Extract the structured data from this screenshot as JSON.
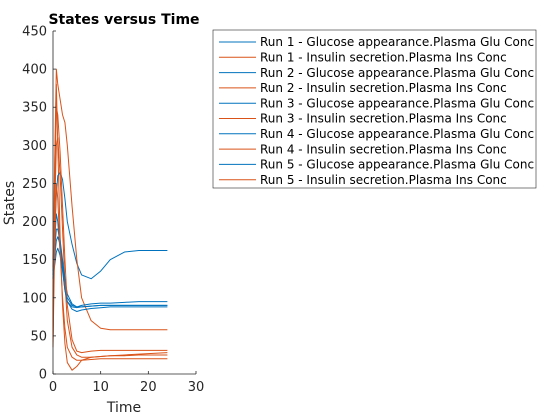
{
  "chart_data": {
    "type": "line",
    "title": "States versus Time",
    "xlabel": "Time",
    "ylabel": "States",
    "xlim": [
      0,
      30
    ],
    "ylim": [
      0,
      450
    ],
    "xticks": [
      "0",
      "10",
      "20",
      "30"
    ],
    "yticks": [
      "0",
      "50",
      "100",
      "150",
      "200",
      "250",
      "300",
      "350",
      "400",
      "450"
    ],
    "grid": false,
    "legend_position": "outside-right",
    "colors": {
      "glucose": "#0072BD",
      "insulin": "#D95319"
    },
    "series": [
      {
        "name": "Run 1 - Glucose appearance.Plasma Glu Conc",
        "group": "glucose",
        "x": [
          0,
          0.3,
          0.7,
          1,
          1.5,
          2,
          2.5,
          3,
          4,
          5,
          6,
          8,
          10,
          12,
          15,
          18,
          21,
          24
        ],
        "y": [
          140,
          170,
          210,
          200,
          160,
          140,
          110,
          95,
          88,
          87,
          88,
          89,
          90,
          90,
          90,
          90,
          90,
          90
        ]
      },
      {
        "name": "Run 1 - Insulin secretion.Plasma Ins Conc",
        "group": "insulin",
        "x": [
          0,
          0.3,
          0.7,
          1,
          1.5,
          2,
          2.5,
          3,
          4,
          5,
          6,
          8,
          10,
          12,
          15,
          18,
          21,
          24
        ],
        "y": [
          50,
          250,
          380,
          300,
          180,
          90,
          40,
          15,
          5,
          10,
          18,
          22,
          23,
          24,
          24,
          25,
          25,
          25
        ]
      },
      {
        "name": "Run 2 - Glucose appearance.Plasma Glu Conc",
        "group": "glucose",
        "x": [
          0,
          0.3,
          0.7,
          1,
          1.5,
          2,
          2.5,
          3,
          4,
          5,
          6,
          8,
          10,
          12,
          15,
          18,
          21,
          24
        ],
        "y": [
          150,
          180,
          235,
          260,
          265,
          255,
          230,
          200,
          170,
          145,
          130,
          125,
          135,
          150,
          160,
          162,
          162,
          162
        ]
      },
      {
        "name": "Run 2 - Insulin secretion.Plasma Ins Conc",
        "group": "insulin",
        "x": [
          0,
          0.3,
          0.7,
          1,
          1.5,
          2,
          2.5,
          3,
          4,
          5,
          6,
          8,
          10,
          12,
          15,
          18,
          21,
          24
        ],
        "y": [
          60,
          260,
          400,
          380,
          360,
          340,
          330,
          300,
          220,
          150,
          100,
          70,
          60,
          58,
          58,
          58,
          58,
          58
        ]
      },
      {
        "name": "Run 3 - Glucose appearance.Plasma Glu Conc",
        "group": "glucose",
        "x": [
          0,
          0.3,
          0.7,
          1,
          1.5,
          2,
          2.5,
          3,
          4,
          5,
          6,
          8,
          10,
          12,
          15,
          18,
          21,
          24
        ],
        "y": [
          130,
          150,
          175,
          180,
          170,
          145,
          120,
          100,
          90,
          88,
          90,
          92,
          93,
          93,
          94,
          95,
          95,
          95
        ]
      },
      {
        "name": "Run 3 - Insulin secretion.Plasma Ins Conc",
        "group": "insulin",
        "x": [
          0,
          0.3,
          0.7,
          1,
          1.5,
          2,
          2.5,
          3,
          4,
          5,
          6,
          8,
          10,
          12,
          15,
          18,
          21,
          24
        ],
        "y": [
          40,
          200,
          300,
          310,
          260,
          190,
          120,
          70,
          35,
          25,
          22,
          22,
          23,
          24,
          25,
          26,
          27,
          28
        ]
      },
      {
        "name": "Run 4 - Glucose appearance.Plasma Glu Conc",
        "group": "glucose",
        "x": [
          0,
          0.3,
          0.7,
          1,
          1.5,
          2,
          2.5,
          3,
          4,
          5,
          6,
          8,
          10,
          12,
          15,
          18,
          21,
          24
        ],
        "y": [
          135,
          160,
          190,
          190,
          175,
          150,
          125,
          105,
          92,
          88,
          88,
          89,
          90,
          90,
          90,
          90,
          90,
          90
        ]
      },
      {
        "name": "Run 4 - Insulin secretion.Plasma Ins Conc",
        "group": "insulin",
        "x": [
          0,
          0.3,
          0.7,
          1,
          1.5,
          2,
          2.5,
          3,
          4,
          5,
          6,
          8,
          10,
          12,
          15,
          18,
          21,
          24
        ],
        "y": [
          45,
          220,
          350,
          340,
          290,
          220,
          150,
          90,
          45,
          30,
          28,
          30,
          31,
          31,
          31,
          31,
          31,
          31
        ]
      },
      {
        "name": "Run 5 - Glucose appearance.Plasma Glu Conc",
        "group": "glucose",
        "x": [
          0,
          0.3,
          0.7,
          1,
          1.5,
          2,
          2.5,
          3,
          4,
          5,
          6,
          8,
          10,
          12,
          15,
          18,
          21,
          24
        ],
        "y": [
          125,
          140,
          160,
          165,
          155,
          135,
          110,
          95,
          85,
          82,
          84,
          86,
          87,
          88,
          88,
          88,
          88,
          88
        ]
      },
      {
        "name": "Run 5 - Insulin secretion.Plasma Ins Conc",
        "group": "insulin",
        "x": [
          0,
          0.3,
          0.7,
          1,
          1.5,
          2,
          2.5,
          3,
          4,
          5,
          6,
          8,
          10,
          12,
          15,
          18,
          21,
          24
        ],
        "y": [
          35,
          150,
          250,
          230,
          160,
          100,
          60,
          35,
          22,
          18,
          18,
          19,
          20,
          20,
          20,
          20,
          20,
          20
        ]
      }
    ]
  }
}
